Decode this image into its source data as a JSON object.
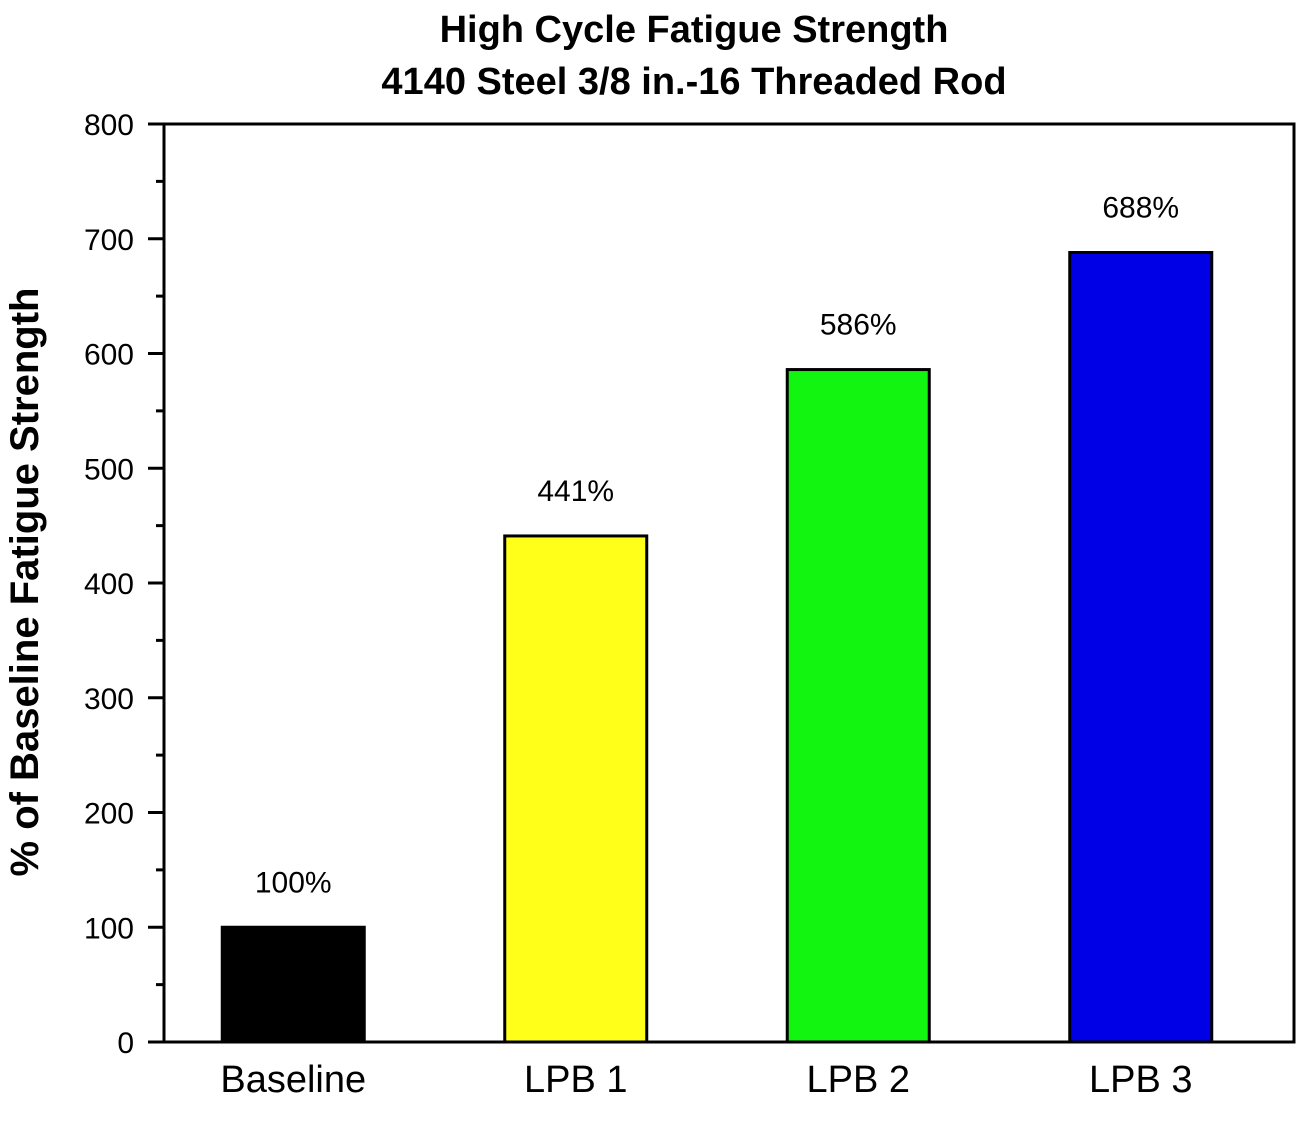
{
  "chart_data": {
    "type": "bar",
    "title": "High Cycle Fatigue Strength",
    "subtitle": "4140 Steel 3/8 in.-16 Threaded Rod",
    "xlabel": "",
    "ylabel": "% of Baseline Fatigue Strength",
    "categories": [
      "Baseline",
      "LPB 1",
      "LPB 2",
      "LPB 3"
    ],
    "values": [
      100,
      441,
      586,
      688
    ],
    "data_labels": [
      "100%",
      "441%",
      "586%",
      "688%"
    ],
    "colors": [
      "#000000",
      "#ffff1a",
      "#11f511",
      "#0000e6"
    ],
    "ylim": [
      0,
      800
    ],
    "yticks": [
      "0",
      "100",
      "200",
      "300",
      "400",
      "500",
      "600",
      "700",
      "800"
    ],
    "grid": false,
    "legend": "none"
  }
}
